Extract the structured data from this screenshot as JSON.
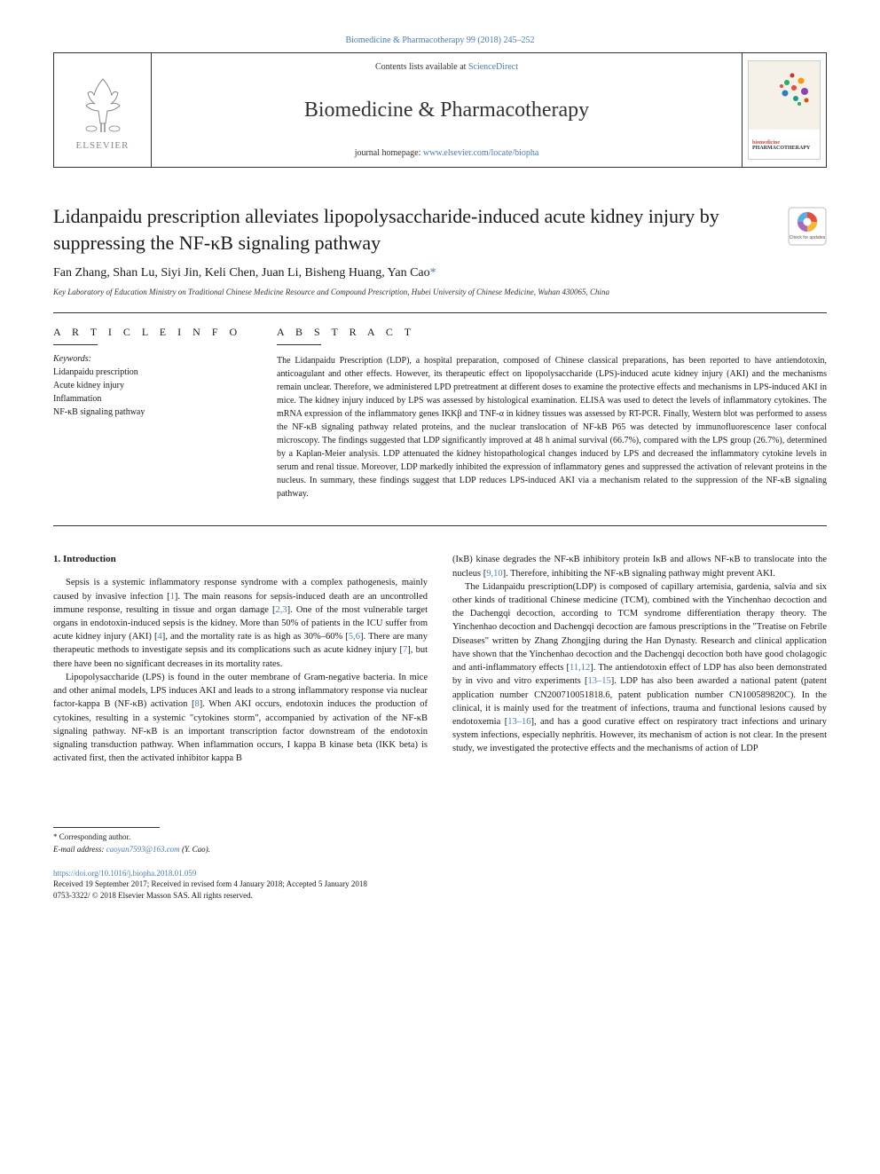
{
  "top_citation": "Biomedicine & Pharmacotherapy 99 (2018) 245–252",
  "header": {
    "contents_prefix": "Contents lists available at ",
    "contents_link": "ScienceDirect",
    "journal_name": "Biomedicine & Pharmacotherapy",
    "homepage_prefix": "journal homepage: ",
    "homepage_link": "www.elsevier.com/locate/biopha",
    "elsevier_label": "ELSEVIER",
    "cover_label_1": "biomedicine",
    "cover_label_2": "PHARMACOTHERAPY",
    "cover_colors": [
      "#e84c3d",
      "#f39c12",
      "#27ae60",
      "#8e44ad",
      "#2980b9",
      "#16a085",
      "#c0392b",
      "#d35400"
    ]
  },
  "check_updates_label": "Check for updates",
  "title": "Lidanpaidu prescription alleviates lipopolysaccharide-induced acute kidney injury by suppressing the NF-κB signaling pathway",
  "authors": "Fan Zhang, Shan Lu, Siyi Jin, Keli Chen, Juan Li, Bisheng Huang, Yan Cao",
  "corr_symbol": "*",
  "affiliation": "Key Laboratory of Education Ministry on Traditional Chinese Medicine Resource and Compound Prescription, Hubei University of Chinese Medicine, Wuhan 430065, China",
  "info": {
    "heading": "A R T I C L E  I N F O",
    "keywords_label": "Keywords:",
    "keywords": [
      "Lidanpaidu prescription",
      "Acute kidney injury",
      "Inflammation",
      "NF-κB signaling pathway"
    ]
  },
  "abstract": {
    "heading": "A B S T R A C T",
    "text": "The Lidanpaidu Prescription (LDP), a hospital preparation, composed of Chinese classical preparations, has been reported to have antiendotoxin, anticoagulant and other effects. However, its therapeutic effect on lipopolysaccharide (LPS)-induced acute kidney injury (AKI) and the mechanisms remain unclear. Therefore, we administered LPD pretreatment at different doses to examine the protective effects and mechanisms in LPS-induced AKI in mice. The kidney injury induced by LPS was assessed by histological examination. ELISA was used to detect the levels of inflammatory cytokines. The mRNA expression of the inflammatory genes IKKβ and TNF-α in kidney tissues was assessed by RT-PCR. Finally, Western blot was performed to assess the NF-κB signaling pathway related proteins, and the nuclear translocation of NF-kB P65 was detected by immunofluorescence laser confocal microscopy. The findings suggested that LDP significantly improved at 48 h animal survival (66.7%), compared with the LPS group (26.7%), determined by a Kaplan-Meier analysis. LDP attenuated the kidney histopathological changes induced by LPS and decreased the inflammatory cytokine levels in serum and renal tissue. Moreover, LDP markedly inhibited the expression of inflammatory genes and suppressed the activation of relevant proteins in the nucleus. In summary, these findings suggest that LDP reduces LPS-induced AKI via a mechanism related to the suppression of the NF-κB signaling pathway."
  },
  "body": {
    "section_number": "1.",
    "section_title": "Introduction",
    "col1": {
      "p1": "Sepsis is a systemic inflammatory response syndrome with a complex pathogenesis, mainly caused by invasive infection [1]. The main reasons for sepsis-induced death are an uncontrolled immune response, resulting in tissue and organ damage [2,3]. One of the most vulnerable target organs in endotoxin-induced sepsis is the kidney. More than 50% of patients in the ICU suffer from acute kidney injury (AKI) [4], and the mortality rate is as high as 30%–60% [5,6]. There are many therapeutic methods to investigate sepsis and its complications such as acute kidney injury [7], but there have been no significant decreases in its mortality rates.",
      "p2": "Lipopolysaccharide (LPS) is found in the outer membrane of Gram-negative bacteria. In mice and other animal models, LPS induces AKI and leads to a strong inflammatory response via nuclear factor-kappa B (NF-κB) activation [8]. When AKI occurs, endotoxin induces the production of cytokines, resulting in a systemic \"cytokines storm\", accompanied by activation of the NF-κB signaling pathway. NF-κB is an important transcription factor downstream of the endotoxin signaling transduction pathway. When inflammation occurs, I kappa B kinase beta (IKK beta) is activated first, then the activated inhibitor kappa B"
    },
    "col2": {
      "p1": "(IκB) kinase degrades the NF-κB inhibitory protein IκB and allows NF-κB to translocate into the nucleus [9,10]. Therefore, inhibiting the NF-κB signaling pathway might prevent AKI.",
      "p2": "The Lidanpaidu prescription(LDP) is composed of capillary artemisia, gardenia, salvia and six other kinds of traditional Chinese medicine (TCM), combined with the Yinchenhao decoction and the Dachengqi decoction, according to TCM syndrome differentiation therapy theory. The Yinchenhao decoction and Dachengqi decoction are famous prescriptions in the \"Treatise on Febrile Diseases\" written by Zhang Zhongjing during the Han Dynasty. Research and clinical application have shown that the Yinchenhao decoction and the Dachengqi decoction both have good cholagogic and anti-inflammatory effects [11,12]. The antiendotoxin effect of LDP has also been demonstrated by in vivo and vitro experiments [13–15]. LDP has also been awarded a national patent (patent application number CN200710051818.6, patent publication number CN100589820C). In the clinical, it is mainly used for the treatment of infections, trauma and functional lesions caused by endotoxemia [13–16], and has a good curative effect on respiratory tract infections and urinary system infections, especially nephritis. However, its mechanism of action is not clear. In the present study, we investigated the protective effects and the mechanisms of action of LDP"
    }
  },
  "footer": {
    "corr_note": "* Corresponding author.",
    "email_label": "E-mail address: ",
    "email": "caoyan7593@163.com",
    "email_paren": " (Y. Cao).",
    "doi": "https://doi.org/10.1016/j.biopha.2018.01.059",
    "received": "Received 19 September 2017; Received in revised form 4 January 2018; Accepted 5 January 2018",
    "copyright": "0753-3322/ © 2018 Elsevier Masson SAS. All rights reserved."
  },
  "colors": {
    "link": "#4a7db8",
    "text": "#1a1a1a",
    "orange": "#f39c12",
    "red": "#c94a3a"
  }
}
